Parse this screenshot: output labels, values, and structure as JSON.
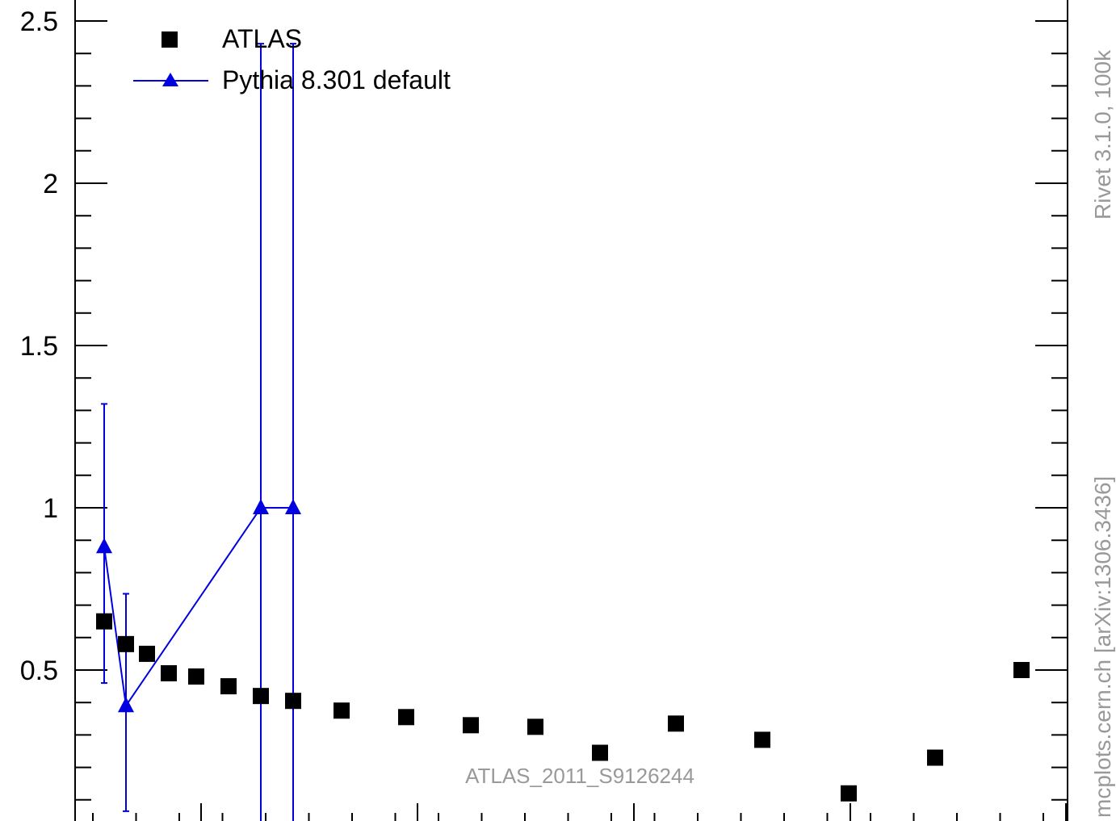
{
  "chart_data": {
    "type": "scatter",
    "title": "",
    "xlabel": "",
    "ylabel": "",
    "ylim": [
      0,
      2.55
    ],
    "y_ticks": [
      "0.5",
      "1",
      "1.5",
      "2",
      "2.5"
    ],
    "legend_position": "top-left",
    "annotation": "ATLAS_2011_S9126244",
    "side_label_top": "Rivet 3.1.0,  100k",
    "side_label_bottom": "mcplots.cern.ch [arXiv:1306.3436]",
    "series": [
      {
        "name": "ATLAS",
        "marker": "square",
        "color": "#000000",
        "x": [
          1,
          2,
          3,
          4,
          5,
          6,
          7,
          8,
          9,
          10,
          11,
          12,
          13,
          14,
          15,
          16,
          17,
          18
        ],
        "y": [
          0.65,
          0.58,
          0.55,
          0.49,
          0.48,
          0.45,
          0.42,
          0.405,
          0.375,
          0.355,
          0.33,
          0.325,
          0.245,
          0.335,
          0.285,
          0.12,
          0.23,
          0.5
        ]
      },
      {
        "name": "Pythia 8.301 default",
        "marker": "triangle",
        "color": "#0000e0",
        "x": [
          1,
          2,
          7,
          8
        ],
        "y": [
          0.88,
          0.39,
          1.0,
          1.0
        ],
        "y_err_low": [
          0.46,
          0.065,
          0.0,
          0.0
        ],
        "y_err_high": [
          1.32,
          0.735,
          2.43,
          2.43
        ]
      }
    ]
  }
}
